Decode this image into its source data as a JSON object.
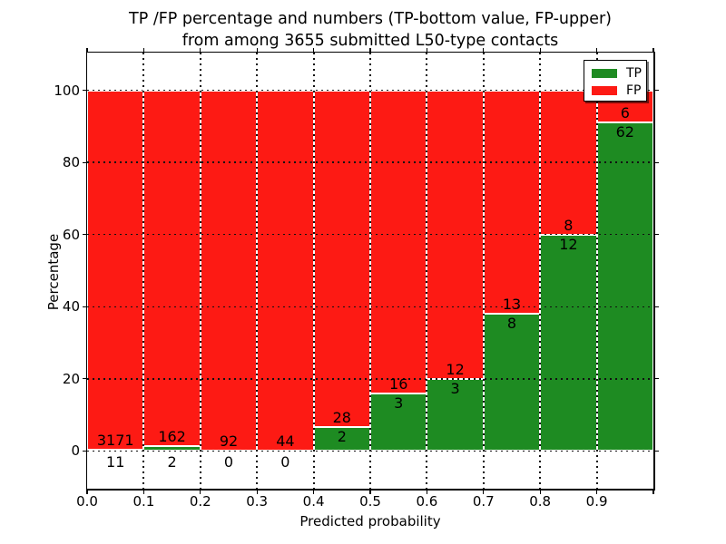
{
  "chart_data": {
    "type": "bar",
    "stacked": true,
    "normalized_to": 100,
    "title": "TP /FP percentage and numbers (TP-bottom value, FP-upper)",
    "subtitle": "from among 3655 submitted L50-type contacts",
    "xlabel": "Predicted probability",
    "ylabel": "Percentage",
    "bin_edges": [
      0.0,
      0.1,
      0.2,
      0.3,
      0.4,
      0.5,
      0.6,
      0.7,
      0.8,
      0.9,
      1.0
    ],
    "categories": [
      "0.0-0.1",
      "0.1-0.2",
      "0.2-0.3",
      "0.3-0.4",
      "0.4-0.5",
      "0.5-0.6",
      "0.6-0.7",
      "0.7-0.8",
      "0.8-0.9",
      "0.9-1.0"
    ],
    "series": [
      {
        "name": "TP",
        "color": "#1e8b22",
        "counts": [
          11,
          2,
          0,
          0,
          2,
          3,
          3,
          8,
          12,
          62
        ]
      },
      {
        "name": "FP",
        "color": "#fd1a14",
        "counts": [
          3171,
          162,
          92,
          44,
          28,
          16,
          12,
          13,
          8,
          6
        ]
      }
    ],
    "tp_percent_of_bin": [
      0.35,
      1.22,
      0,
      0,
      6.67,
      15.79,
      20.0,
      38.1,
      60.0,
      91.18
    ],
    "xticklabels": [
      "0.0",
      "0.1",
      "0.2",
      "0.3",
      "0.4",
      "0.5",
      "0.6",
      "0.7",
      "0.8",
      "0.9"
    ],
    "yticks": [
      0,
      20,
      40,
      60,
      80,
      100
    ],
    "yticklabels": [
      "0",
      "20",
      "40",
      "60",
      "80",
      "100"
    ],
    "xlim": [
      0.0,
      1.0
    ],
    "ylim": [
      -10.5,
      110.5
    ],
    "grid": "dotted, both axes, drawn over bars",
    "legend": {
      "position": "upper right",
      "entries": [
        "TP",
        "FP"
      ]
    }
  }
}
